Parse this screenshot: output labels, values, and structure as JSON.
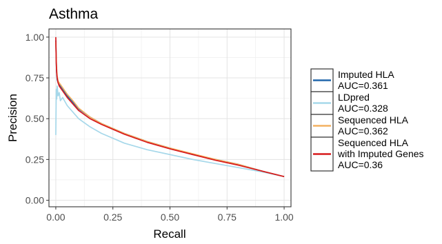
{
  "chart_data": {
    "type": "line",
    "title": "Asthma",
    "xlabel": "Recall",
    "ylabel": "Precision",
    "xlim": [
      -0.03,
      1.03
    ],
    "ylim": [
      -0.04,
      1.05
    ],
    "x_ticks": [
      0.0,
      0.25,
      0.5,
      0.75,
      1.0
    ],
    "x_tick_labels": [
      "0.00",
      "0.25",
      "0.50",
      "0.75",
      "1.00"
    ],
    "y_ticks": [
      0.0,
      0.25,
      0.5,
      0.75,
      1.0
    ],
    "y_tick_labels": [
      "0.00",
      "0.25",
      "0.50",
      "0.75",
      "1.00"
    ],
    "grid": true,
    "legend_position": "right",
    "series": [
      {
        "name": "Imputed HLA AUC=0.361",
        "label_lines": [
          "Imputed HLA",
          "AUC=0.361"
        ],
        "color": "#2166ac",
        "x": [
          0.0,
          0.003,
          0.006,
          0.01,
          0.015,
          0.02,
          0.03,
          0.05,
          0.075,
          0.1,
          0.15,
          0.2,
          0.25,
          0.3,
          0.4,
          0.5,
          0.6,
          0.7,
          0.8,
          0.9,
          1.0
        ],
        "y": [
          0.98,
          0.8,
          0.74,
          0.72,
          0.71,
          0.7,
          0.68,
          0.64,
          0.6,
          0.56,
          0.51,
          0.47,
          0.44,
          0.41,
          0.36,
          0.32,
          0.28,
          0.25,
          0.22,
          0.18,
          0.145
        ]
      },
      {
        "name": "LDpred AUC=0.328",
        "label_lines": [
          "LDpred",
          "AUC=0.328"
        ],
        "color": "#a6d8ea",
        "x": [
          0.0,
          0.002,
          0.004,
          0.006,
          0.01,
          0.015,
          0.02,
          0.03,
          0.05,
          0.075,
          0.1,
          0.15,
          0.2,
          0.25,
          0.3,
          0.4,
          0.5,
          0.6,
          0.7,
          0.8,
          0.9,
          1.0
        ],
        "y": [
          0.4,
          0.68,
          0.62,
          0.7,
          0.64,
          0.66,
          0.61,
          0.63,
          0.58,
          0.54,
          0.5,
          0.45,
          0.41,
          0.38,
          0.35,
          0.31,
          0.28,
          0.25,
          0.225,
          0.2,
          0.175,
          0.145
        ]
      },
      {
        "name": "Sequenced HLA AUC=0.362",
        "label_lines": [
          "Sequenced HLA",
          "AUC=0.362"
        ],
        "color": "#f4b060",
        "x": [
          0.0,
          0.003,
          0.006,
          0.01,
          0.015,
          0.02,
          0.03,
          0.05,
          0.075,
          0.1,
          0.15,
          0.2,
          0.25,
          0.3,
          0.4,
          0.5,
          0.6,
          0.7,
          0.8,
          0.9,
          1.0
        ],
        "y": [
          0.97,
          0.82,
          0.76,
          0.73,
          0.72,
          0.71,
          0.69,
          0.65,
          0.61,
          0.565,
          0.51,
          0.47,
          0.44,
          0.41,
          0.36,
          0.32,
          0.285,
          0.25,
          0.22,
          0.18,
          0.145
        ]
      },
      {
        "name": "Sequenced HLA with Imputed Genes AUC=0.36",
        "label_lines": [
          "Sequenced HLA",
          "with Imputed Genes",
          "AUC=0.36"
        ],
        "color": "#d7191c",
        "x": [
          0.0,
          0.002,
          0.004,
          0.006,
          0.01,
          0.015,
          0.02,
          0.03,
          0.05,
          0.075,
          0.1,
          0.15,
          0.2,
          0.25,
          0.3,
          0.4,
          0.5,
          0.6,
          0.7,
          0.8,
          0.9,
          1.0
        ],
        "y": [
          1.0,
          0.84,
          0.78,
          0.75,
          0.72,
          0.7,
          0.69,
          0.67,
          0.63,
          0.59,
          0.55,
          0.5,
          0.465,
          0.435,
          0.405,
          0.355,
          0.315,
          0.28,
          0.245,
          0.215,
          0.18,
          0.145
        ]
      }
    ]
  }
}
